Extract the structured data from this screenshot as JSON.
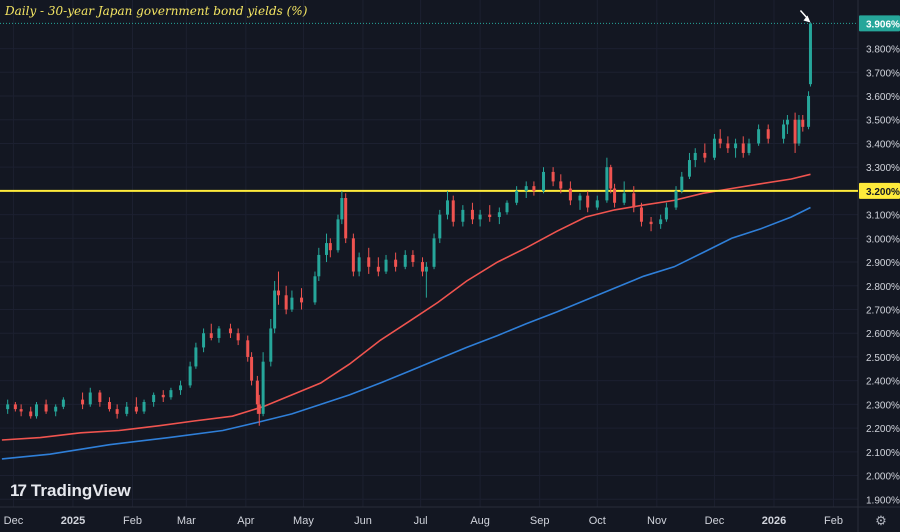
{
  "chart_data": {
    "type": "candlestick",
    "title": "Daily - 30-year Japan government bond yields (%)",
    "x_ticks": [
      "Dec",
      "2025",
      "Feb",
      "Mar",
      "Apr",
      "May",
      "Jun",
      "Jul",
      "Aug",
      "Sep",
      "Oct",
      "Nov",
      "Dec",
      "2026",
      "Feb"
    ],
    "y_ticks": [
      "3.906%",
      "3.800%",
      "3.700%",
      "3.600%",
      "3.500%",
      "3.400%",
      "3.300%",
      "3.200%",
      "3.100%",
      "3.000%",
      "2.900%",
      "2.800%",
      "2.700%",
      "2.600%",
      "2.500%",
      "2.400%",
      "2.300%",
      "2.200%",
      "2.100%",
      "2.000%",
      "1.900%"
    ],
    "ylim": [
      1.88,
      3.95
    ],
    "last_price": "3.906%",
    "last_price_value": 3.906,
    "horizontal_line": {
      "value": 3.2,
      "label": "3.200%",
      "color": "#ffeb3b"
    },
    "up_color": "#26a69a",
    "down_color": "#ef5350",
    "series": [
      {
        "type": "moving_average",
        "color": "#f0544f",
        "points": [
          [
            "2024-11-25",
            2.15
          ],
          [
            "2024-12-15",
            2.16
          ],
          [
            "2025-01-05",
            2.18
          ],
          [
            "2025-01-25",
            2.19
          ],
          [
            "2025-02-15",
            2.21
          ],
          [
            "2025-03-05",
            2.23
          ],
          [
            "2025-03-25",
            2.25
          ],
          [
            "2025-04-10",
            2.29
          ],
          [
            "2025-04-25",
            2.34
          ],
          [
            "2025-05-10",
            2.39
          ],
          [
            "2025-05-25",
            2.47
          ],
          [
            "2025-06-10",
            2.57
          ],
          [
            "2025-06-25",
            2.65
          ],
          [
            "2025-07-10",
            2.73
          ],
          [
            "2025-07-25",
            2.82
          ],
          [
            "2025-08-10",
            2.9
          ],
          [
            "2025-08-25",
            2.96
          ],
          [
            "2025-09-10",
            3.03
          ],
          [
            "2025-09-25",
            3.09
          ],
          [
            "2025-10-10",
            3.12
          ],
          [
            "2025-10-25",
            3.14
          ],
          [
            "2025-11-10",
            3.16
          ],
          [
            "2025-11-25",
            3.19
          ],
          [
            "2025-12-10",
            3.21
          ],
          [
            "2025-12-25",
            3.23
          ],
          [
            "2026-01-10",
            3.25
          ],
          [
            "2026-01-20",
            3.27
          ]
        ]
      },
      {
        "type": "moving_average",
        "color": "#2f7fd8",
        "points": [
          [
            "2024-11-25",
            2.07
          ],
          [
            "2024-12-20",
            2.09
          ],
          [
            "2025-01-20",
            2.13
          ],
          [
            "2025-02-20",
            2.16
          ],
          [
            "2025-03-20",
            2.19
          ],
          [
            "2025-04-10",
            2.23
          ],
          [
            "2025-04-25",
            2.26
          ],
          [
            "2025-05-10",
            2.3
          ],
          [
            "2025-05-25",
            2.34
          ],
          [
            "2025-06-10",
            2.39
          ],
          [
            "2025-06-25",
            2.44
          ],
          [
            "2025-07-10",
            2.49
          ],
          [
            "2025-07-25",
            2.54
          ],
          [
            "2025-08-10",
            2.59
          ],
          [
            "2025-08-25",
            2.64
          ],
          [
            "2025-09-10",
            2.69
          ],
          [
            "2025-09-25",
            2.74
          ],
          [
            "2025-10-10",
            2.79
          ],
          [
            "2025-10-25",
            2.84
          ],
          [
            "2025-11-10",
            2.88
          ],
          [
            "2025-11-25",
            2.94
          ],
          [
            "2025-12-10",
            3.0
          ],
          [
            "2025-12-25",
            3.04
          ],
          [
            "2026-01-10",
            3.09
          ],
          [
            "2026-01-20",
            3.13
          ]
        ]
      }
    ],
    "candles": [
      [
        "2024-11-28",
        2.28,
        2.32,
        2.26,
        2.3
      ],
      [
        "2024-12-02",
        2.3,
        2.31,
        2.27,
        2.28
      ],
      [
        "2024-12-05",
        2.28,
        2.3,
        2.25,
        2.27
      ],
      [
        "2024-12-10",
        2.27,
        2.29,
        2.24,
        2.25
      ],
      [
        "2024-12-13",
        2.25,
        2.31,
        2.24,
        2.3
      ],
      [
        "2024-12-18",
        2.3,
        2.32,
        2.26,
        2.27
      ],
      [
        "2024-12-23",
        2.27,
        2.3,
        2.25,
        2.29
      ],
      [
        "2024-12-27",
        2.29,
        2.33,
        2.28,
        2.32
      ],
      [
        "2025-01-06",
        2.32,
        2.35,
        2.28,
        2.3
      ],
      [
        "2025-01-10",
        2.3,
        2.37,
        2.29,
        2.35
      ],
      [
        "2025-01-15",
        2.35,
        2.36,
        2.29,
        2.31
      ],
      [
        "2025-01-20",
        2.31,
        2.33,
        2.27,
        2.28
      ],
      [
        "2025-01-24",
        2.28,
        2.3,
        2.24,
        2.26
      ],
      [
        "2025-01-29",
        2.26,
        2.31,
        2.25,
        2.29
      ],
      [
        "2025-02-03",
        2.29,
        2.33,
        2.26,
        2.27
      ],
      [
        "2025-02-07",
        2.27,
        2.32,
        2.26,
        2.31
      ],
      [
        "2025-02-12",
        2.31,
        2.35,
        2.29,
        2.34
      ],
      [
        "2025-02-17",
        2.34,
        2.36,
        2.31,
        2.33
      ],
      [
        "2025-02-21",
        2.33,
        2.37,
        2.32,
        2.36
      ],
      [
        "2025-02-26",
        2.36,
        2.4,
        2.34,
        2.38
      ],
      [
        "2025-03-03",
        2.38,
        2.48,
        2.37,
        2.46
      ],
      [
        "2025-03-06",
        2.46,
        2.56,
        2.45,
        2.54
      ],
      [
        "2025-03-10",
        2.54,
        2.62,
        2.52,
        2.6
      ],
      [
        "2025-03-14",
        2.6,
        2.64,
        2.57,
        2.58
      ],
      [
        "2025-03-18",
        2.58,
        2.63,
        2.56,
        2.62
      ],
      [
        "2025-03-24",
        2.62,
        2.64,
        2.58,
        2.6
      ],
      [
        "2025-03-28",
        2.6,
        2.62,
        2.55,
        2.57
      ],
      [
        "2025-04-02",
        2.57,
        2.59,
        2.48,
        2.5
      ],
      [
        "2025-04-04",
        2.5,
        2.52,
        2.38,
        2.4
      ],
      [
        "2025-04-07",
        2.4,
        2.42,
        2.26,
        2.3
      ],
      [
        "2025-04-08",
        2.3,
        2.34,
        2.21,
        2.26
      ],
      [
        "2025-04-10",
        2.26,
        2.52,
        2.25,
        2.48
      ],
      [
        "2025-04-14",
        2.48,
        2.66,
        2.46,
        2.62
      ],
      [
        "2025-04-16",
        2.62,
        2.82,
        2.6,
        2.78
      ],
      [
        "2025-04-18",
        2.78,
        2.86,
        2.72,
        2.76
      ],
      [
        "2025-04-22",
        2.76,
        2.8,
        2.68,
        2.7
      ],
      [
        "2025-04-25",
        2.7,
        2.78,
        2.69,
        2.75
      ],
      [
        "2025-04-30",
        2.75,
        2.79,
        2.7,
        2.73
      ],
      [
        "2025-05-07",
        2.73,
        2.86,
        2.72,
        2.84
      ],
      [
        "2025-05-09",
        2.84,
        2.96,
        2.82,
        2.93
      ],
      [
        "2025-05-13",
        2.93,
        3.02,
        2.9,
        2.98
      ],
      [
        "2025-05-15",
        2.98,
        3.0,
        2.92,
        2.95
      ],
      [
        "2025-05-19",
        2.95,
        3.1,
        2.94,
        3.08
      ],
      [
        "2025-05-21",
        3.08,
        3.2,
        3.06,
        3.17
      ],
      [
        "2025-05-23",
        3.17,
        3.19,
        2.98,
        3.0
      ],
      [
        "2025-05-27",
        3.0,
        3.02,
        2.84,
        2.86
      ],
      [
        "2025-05-30",
        2.86,
        2.94,
        2.84,
        2.92
      ],
      [
        "2025-06-04",
        2.92,
        2.96,
        2.85,
        2.88
      ],
      [
        "2025-06-09",
        2.88,
        2.92,
        2.84,
        2.86
      ],
      [
        "2025-06-13",
        2.86,
        2.93,
        2.85,
        2.91
      ],
      [
        "2025-06-18",
        2.91,
        2.94,
        2.86,
        2.88
      ],
      [
        "2025-06-23",
        2.88,
        2.95,
        2.87,
        2.93
      ],
      [
        "2025-06-27",
        2.93,
        2.95,
        2.88,
        2.9
      ],
      [
        "2025-07-02",
        2.9,
        2.92,
        2.84,
        2.86
      ],
      [
        "2025-07-04",
        2.86,
        2.9,
        2.75,
        2.88
      ],
      [
        "2025-07-08",
        2.88,
        3.02,
        2.87,
        3.0
      ],
      [
        "2025-07-11",
        3.0,
        3.12,
        2.98,
        3.1
      ],
      [
        "2025-07-15",
        3.1,
        3.2,
        3.08,
        3.16
      ],
      [
        "2025-07-18",
        3.16,
        3.18,
        3.05,
        3.07
      ],
      [
        "2025-07-23",
        3.07,
        3.14,
        3.05,
        3.12
      ],
      [
        "2025-07-28",
        3.12,
        3.15,
        3.06,
        3.08
      ],
      [
        "2025-08-01",
        3.08,
        3.12,
        3.05,
        3.1
      ],
      [
        "2025-08-06",
        3.1,
        3.14,
        3.07,
        3.09
      ],
      [
        "2025-08-11",
        3.09,
        3.13,
        3.06,
        3.11
      ],
      [
        "2025-08-15",
        3.11,
        3.16,
        3.1,
        3.15
      ],
      [
        "2025-08-20",
        3.15,
        3.22,
        3.14,
        3.2
      ],
      [
        "2025-08-25",
        3.2,
        3.24,
        3.17,
        3.22
      ],
      [
        "2025-08-29",
        3.22,
        3.24,
        3.18,
        3.2
      ],
      [
        "2025-09-03",
        3.2,
        3.3,
        3.19,
        3.28
      ],
      [
        "2025-09-08",
        3.28,
        3.3,
        3.22,
        3.24
      ],
      [
        "2025-09-12",
        3.24,
        3.27,
        3.19,
        3.21
      ],
      [
        "2025-09-17",
        3.21,
        3.24,
        3.14,
        3.16
      ],
      [
        "2025-09-22",
        3.16,
        3.19,
        3.12,
        3.18
      ],
      [
        "2025-09-26",
        3.18,
        3.2,
        3.11,
        3.13
      ],
      [
        "2025-10-01",
        3.13,
        3.18,
        3.12,
        3.16
      ],
      [
        "2025-10-06",
        3.16,
        3.34,
        3.15,
        3.3
      ],
      [
        "2025-10-08",
        3.3,
        3.31,
        3.19,
        3.21
      ],
      [
        "2025-10-10",
        3.21,
        3.23,
        3.13,
        3.15
      ],
      [
        "2025-10-15",
        3.15,
        3.24,
        3.14,
        3.19
      ],
      [
        "2025-10-20",
        3.19,
        3.22,
        3.11,
        3.13
      ],
      [
        "2025-10-24",
        3.13,
        3.15,
        3.05,
        3.07
      ],
      [
        "2025-10-29",
        3.07,
        3.09,
        3.03,
        3.06
      ],
      [
        "2025-11-03",
        3.06,
        3.1,
        3.04,
        3.08
      ],
      [
        "2025-11-06",
        3.08,
        3.15,
        3.07,
        3.13
      ],
      [
        "2025-11-11",
        3.13,
        3.22,
        3.12,
        3.2
      ],
      [
        "2025-11-14",
        3.2,
        3.28,
        3.19,
        3.26
      ],
      [
        "2025-11-18",
        3.26,
        3.36,
        3.25,
        3.33
      ],
      [
        "2025-11-21",
        3.33,
        3.38,
        3.3,
        3.36
      ],
      [
        "2025-11-26",
        3.36,
        3.4,
        3.32,
        3.34
      ],
      [
        "2025-12-01",
        3.34,
        3.44,
        3.33,
        3.42
      ],
      [
        "2025-12-04",
        3.42,
        3.46,
        3.38,
        3.4
      ],
      [
        "2025-12-08",
        3.4,
        3.43,
        3.36,
        3.38
      ],
      [
        "2025-12-12",
        3.38,
        3.42,
        3.34,
        3.4
      ],
      [
        "2025-12-16",
        3.4,
        3.43,
        3.34,
        3.36
      ],
      [
        "2025-12-19",
        3.36,
        3.42,
        3.35,
        3.4
      ],
      [
        "2025-12-24",
        3.4,
        3.48,
        3.39,
        3.46
      ],
      [
        "2025-12-29",
        3.46,
        3.48,
        3.4,
        3.42
      ],
      [
        "2026-01-06",
        3.42,
        3.5,
        3.4,
        3.48
      ],
      [
        "2026-01-08",
        3.48,
        3.52,
        3.44,
        3.5
      ],
      [
        "2026-01-12",
        3.5,
        3.53,
        3.36,
        3.4
      ],
      [
        "2026-01-14",
        3.4,
        3.52,
        3.39,
        3.5
      ],
      [
        "2026-01-16",
        3.5,
        3.52,
        3.45,
        3.47
      ],
      [
        "2026-01-19",
        3.47,
        3.62,
        3.46,
        3.6
      ],
      [
        "2026-01-20",
        3.65,
        3.91,
        3.64,
        3.906
      ]
    ]
  },
  "brand": {
    "name": "TradingView",
    "mark": "17"
  },
  "settings_icon": "gear-icon"
}
